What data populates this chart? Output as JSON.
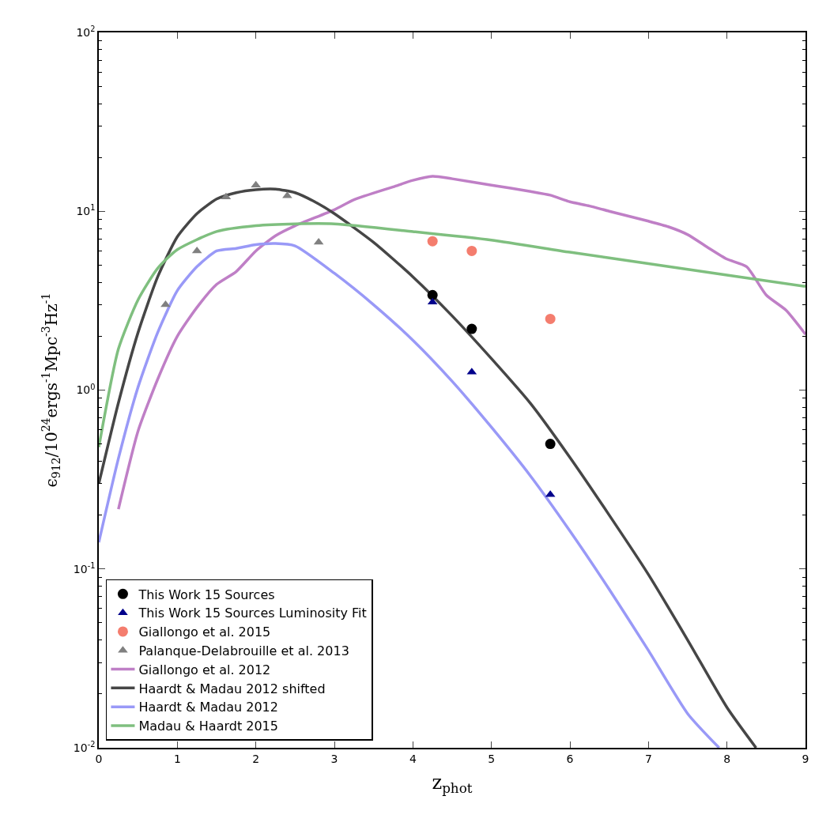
{
  "chart_data": {
    "type": "line",
    "xlabel": "z$_{phot}$",
    "ylabel": "ϵ$_{912}$/10$^{24}$ergs$^{-1}$Mpc$^{-3}$Hz$^{-1}$",
    "log": "y",
    "xlim": [
      0,
      9
    ],
    "ylim": [
      0.01,
      100
    ],
    "xticks": [
      0,
      1,
      2,
      3,
      4,
      5,
      6,
      7,
      8,
      9
    ],
    "yticks": [
      {
        "value": 0.01,
        "label": "10$^{-2}$"
      },
      {
        "value": 0.1,
        "label": "10$^{-1}$"
      },
      {
        "value": 1,
        "label": "10$^{0}$"
      },
      {
        "value": 10,
        "label": "10$^{1}$"
      },
      {
        "value": 100,
        "label": "10$^{2}$"
      }
    ],
    "legend": "bottom left",
    "series": [
      {
        "name": "This Work 15 Sources",
        "type": "scatter",
        "marker": "circle",
        "color": "#000000",
        "x": [
          4.25,
          4.75,
          5.75
        ],
        "values": [
          3.4,
          2.2,
          0.5
        ]
      },
      {
        "name": "This Work 15 Sources Luminosity Fit",
        "type": "scatter",
        "marker": "triangle",
        "color": "#00008b",
        "x": [
          4.25,
          4.75,
          5.75
        ],
        "values": [
          3.1,
          1.26,
          0.26
        ]
      },
      {
        "name": "Giallongo et al. 2015",
        "type": "scatter",
        "marker": "circle",
        "color": "#f47d6e",
        "x": [
          4.25,
          4.75,
          5.75
        ],
        "values": [
          6.8,
          6.0,
          2.5
        ]
      },
      {
        "name": "Palanque-Delabrouille et al. 2013",
        "type": "scatter",
        "marker": "triangle",
        "color": "#808080",
        "x": [
          0.85,
          1.25,
          1.62,
          2.0,
          2.4,
          2.8
        ],
        "values": [
          3.0,
          6.0,
          12.0,
          14.0,
          12.2,
          6.7
        ]
      },
      {
        "name": "Giallongo et al. 2012",
        "color": "#bf7fc6",
        "x": [
          0.25,
          0.5,
          0.75,
          1.0,
          1.25,
          1.5,
          1.75,
          2.0,
          2.25,
          2.5,
          3.0,
          3.25,
          3.75,
          4.0,
          4.25,
          4.5,
          5.0,
          5.5,
          5.75,
          6.0,
          6.25,
          6.5,
          7.0,
          7.25,
          7.5,
          7.75,
          8.0,
          8.25,
          8.5,
          8.75,
          9.0
        ],
        "values": [
          0.216,
          0.59,
          1.15,
          2.0,
          2.9,
          3.9,
          4.6,
          6.0,
          7.3,
          8.3,
          10.2,
          11.6,
          13.7,
          14.9,
          15.7,
          15.2,
          14.0,
          12.9,
          12.3,
          11.3,
          10.7,
          10.0,
          8.8,
          8.2,
          7.4,
          6.3,
          5.4,
          4.9,
          3.4,
          2.8,
          2.05
        ]
      },
      {
        "name": "Haardt & Madau 2012 shifted",
        "color": "#464646",
        "x": [
          0,
          0.25,
          0.5,
          0.75,
          1.0,
          1.25,
          1.5,
          1.75,
          2.0,
          2.25,
          2.5,
          2.75,
          3.0,
          3.5,
          4.0,
          4.5,
          5.0,
          5.5,
          6.0,
          6.5,
          7.0,
          7.5,
          8.0,
          8.37
        ],
        "values": [
          0.3,
          0.85,
          2.1,
          4.3,
          7.2,
          9.7,
          11.7,
          12.7,
          13.2,
          13.3,
          12.7,
          11.3,
          9.7,
          6.7,
          4.3,
          2.6,
          1.5,
          0.84,
          0.42,
          0.2,
          0.093,
          0.04,
          0.0168,
          0.01
        ]
      },
      {
        "name": "Haardt & Madau 2012",
        "color": "#9999f7",
        "x": [
          0,
          0.25,
          0.5,
          0.75,
          1.0,
          1.25,
          1.5,
          1.75,
          2.0,
          2.25,
          2.5,
          3.0,
          3.5,
          4.0,
          4.5,
          5.0,
          5.5,
          6.0,
          6.5,
          7.0,
          7.5,
          7.9
        ],
        "values": [
          0.141,
          0.415,
          1.04,
          2.1,
          3.6,
          4.9,
          6.0,
          6.2,
          6.5,
          6.6,
          6.4,
          4.5,
          3.0,
          1.9,
          1.12,
          0.62,
          0.33,
          0.163,
          0.077,
          0.035,
          0.0155,
          0.01
        ]
      },
      {
        "name": "Madau & Haardt 2015",
        "color": "#7fbf7f",
        "x": [
          0,
          0.25,
          0.5,
          0.75,
          1.0,
          1.5,
          2.0,
          2.5,
          3.0,
          4.0,
          5.0,
          6.0,
          7.0,
          8.0,
          9.0
        ],
        "values": [
          0.48,
          1.7,
          3.2,
          4.8,
          6.1,
          7.7,
          8.3,
          8.5,
          8.5,
          7.7,
          6.9,
          5.9,
          5.1,
          4.4,
          3.8
        ]
      }
    ]
  }
}
